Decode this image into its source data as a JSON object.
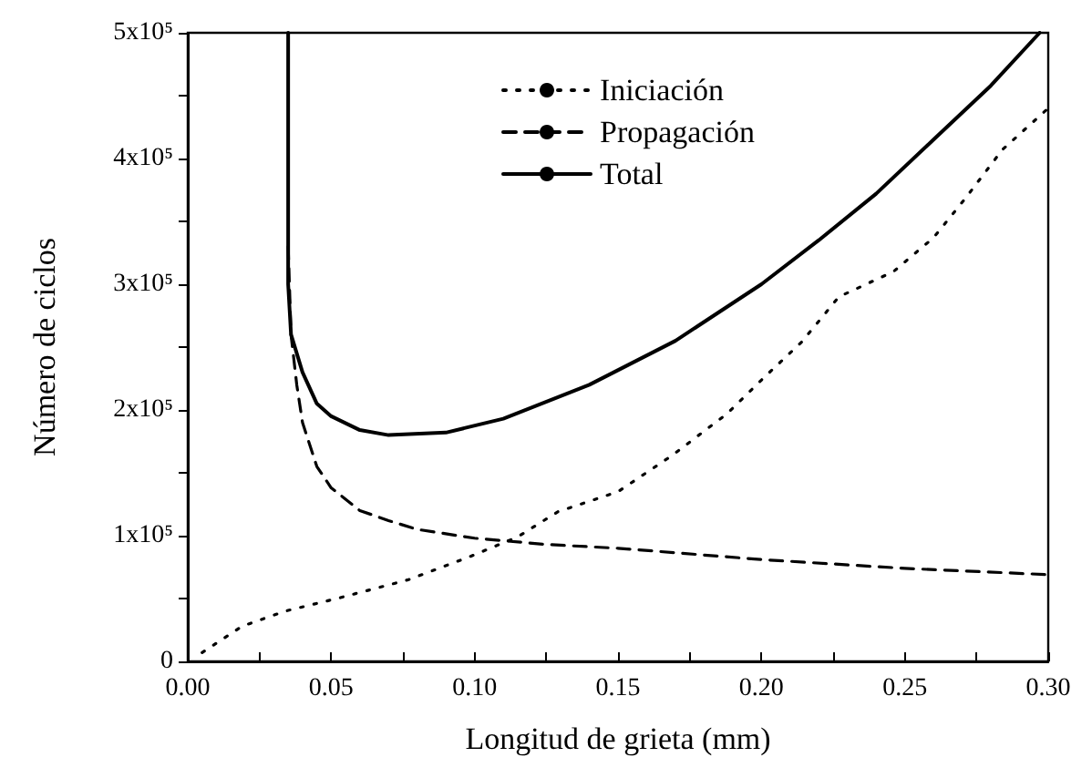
{
  "chart_data": {
    "type": "line",
    "xlabel": "Longitud de grieta (mm)",
    "ylabel": "Número de ciclos",
    "xlim": [
      0,
      0.3
    ],
    "xticks": [
      {
        "value": 0,
        "label": "0.00"
      },
      {
        "value": 0.025,
        "label": null
      },
      {
        "value": 0.05,
        "label": "0.05"
      },
      {
        "value": 0.075,
        "label": null
      },
      {
        "value": 0.1,
        "label": "0.10"
      },
      {
        "value": 0.125,
        "label": null
      },
      {
        "value": 0.15,
        "label": "0.15"
      },
      {
        "value": 0.175,
        "label": null
      },
      {
        "value": 0.2,
        "label": "0.20"
      },
      {
        "value": 0.225,
        "label": null
      },
      {
        "value": 0.25,
        "label": "0.25"
      },
      {
        "value": 0.275,
        "label": null
      },
      {
        "value": 0.3,
        "label": "0.30"
      }
    ],
    "ylim": [
      0,
      500000
    ],
    "yticks": [
      {
        "value": 0,
        "label": "0"
      },
      {
        "value": 50000,
        "label": null
      },
      {
        "value": 100000,
        "label": "1x10⁵"
      },
      {
        "value": 150000,
        "label": null
      },
      {
        "value": 200000,
        "label": "2x10⁵"
      },
      {
        "value": 250000,
        "label": null
      },
      {
        "value": 300000,
        "label": "3x10⁵"
      },
      {
        "value": 350000,
        "label": null
      },
      {
        "value": 400000,
        "label": "4x10⁵"
      },
      {
        "value": 450000,
        "label": null
      },
      {
        "value": 500000,
        "label": "5x10⁵"
      }
    ],
    "grid": false,
    "legend": "top right",
    "marker": "none",
    "series": [
      {
        "name": "Iniciación",
        "color": "#000000",
        "line_style": "dotted",
        "x": [
          0.005,
          0.019,
          0.034,
          0.052,
          0.077,
          0.098,
          0.115,
          0.129,
          0.15,
          0.169,
          0.188,
          0.201,
          0.214,
          0.227,
          0.246,
          0.26,
          0.271,
          0.284,
          0.3
        ],
        "values": [
          7000,
          28000,
          40000,
          50000,
          65000,
          83000,
          99000,
          119000,
          135000,
          164000,
          197000,
          226000,
          254000,
          290000,
          310000,
          337000,
          368000,
          407000,
          440000
        ]
      },
      {
        "name": "Propagación",
        "color": "#000000",
        "line_style": "dashed",
        "x": [
          0.035,
          0.036,
          0.038,
          0.04,
          0.045,
          0.05,
          0.06,
          0.07,
          0.08,
          0.1,
          0.125,
          0.15,
          0.2,
          0.25,
          0.3
        ],
        "values": [
          330000,
          260000,
          220000,
          190000,
          155000,
          138000,
          120000,
          112000,
          105000,
          98000,
          93000,
          90000,
          81000,
          74000,
          69000
        ]
      },
      {
        "name": "Total",
        "color": "#000000",
        "line_style": "solid",
        "x": [
          0.035,
          0.035,
          0.036,
          0.04,
          0.045,
          0.05,
          0.06,
          0.07,
          0.09,
          0.11,
          0.14,
          0.17,
          0.2,
          0.22,
          0.24,
          0.26,
          0.28,
          0.297
        ],
        "values": [
          500000,
          300000,
          260000,
          230000,
          205000,
          195000,
          184000,
          180000,
          182000,
          193000,
          220000,
          255000,
          300000,
          335000,
          372000,
          415000,
          458000,
          500000
        ]
      }
    ]
  }
}
